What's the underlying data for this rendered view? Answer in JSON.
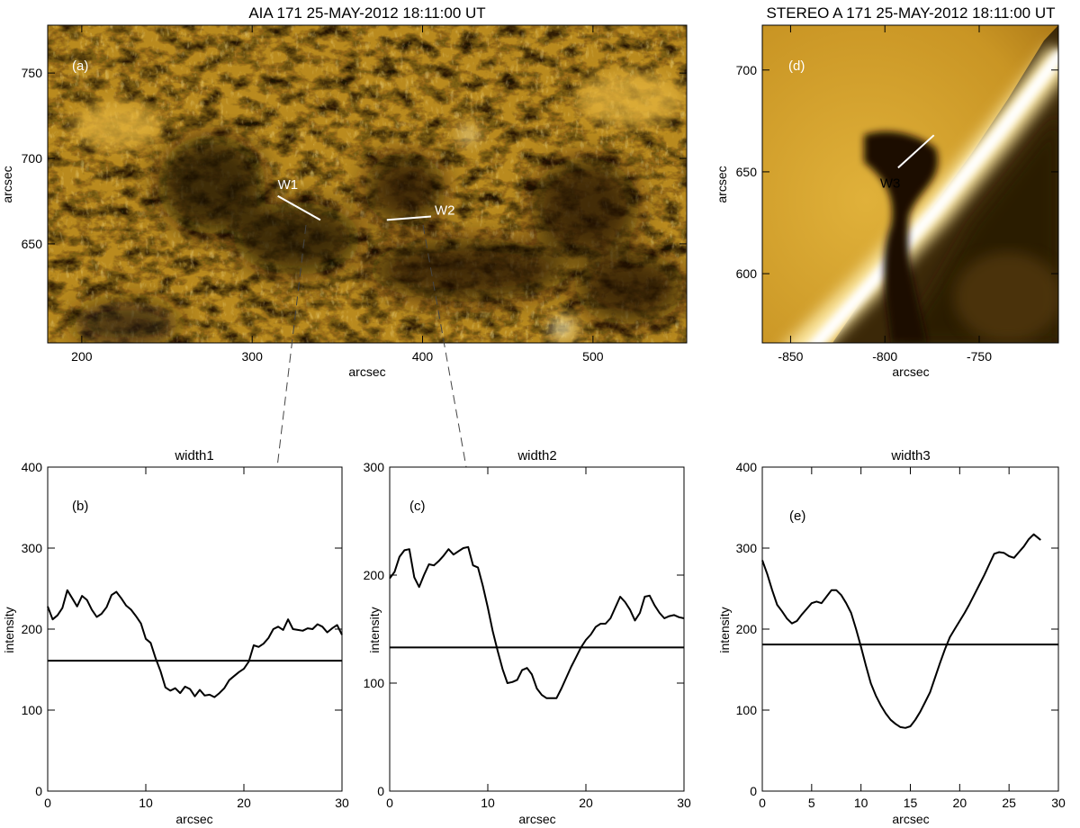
{
  "chart_data": [
    {
      "type": "image",
      "panel_letter": "(a)",
      "title": "AIA 171 25-MAY-2012 18:11:00 UT",
      "xlabel": "arcsec",
      "ylabel": "arcsec",
      "xlim": [
        180,
        555
      ],
      "ylim": [
        592,
        778
      ],
      "xticks": [
        200,
        300,
        400,
        500
      ],
      "yticks": [
        650,
        700,
        750
      ],
      "markers": [
        {
          "label": "W1",
          "x1": 315,
          "y1": 678,
          "x2": 340,
          "y2": 664
        },
        {
          "label": "W2",
          "x1": 379,
          "y1": 664,
          "x2": 405,
          "y2": 666
        }
      ],
      "colormap": "SDO AIA 171 (gold)"
    },
    {
      "type": "image",
      "panel_letter": "(d)",
      "title": "STEREO A 171 25-MAY-2012 18:11:00 UT",
      "xlabel": "arcsec",
      "ylabel": "arcsec",
      "xlim": [
        -865,
        -708
      ],
      "ylim": [
        566,
        722
      ],
      "xticks": [
        -850,
        -800,
        -750
      ],
      "yticks": [
        600,
        650,
        700
      ],
      "markers": [
        {
          "label": "W3",
          "x1": -793,
          "y1": 652,
          "x2": -774,
          "y2": 668
        }
      ],
      "colormap": "STEREO 171 (gold)"
    },
    {
      "type": "line",
      "panel_letter": "(b)",
      "title": "width1",
      "xlabel": "arcsec",
      "ylabel": "intensity",
      "xlim": [
        0,
        30
      ],
      "ylim": [
        0,
        400
      ],
      "xticks": [
        0,
        10,
        20,
        30
      ],
      "yticks": [
        0,
        100,
        200,
        300,
        400
      ],
      "threshold": 161,
      "x": [
        0,
        0.5,
        1,
        1.5,
        2,
        2.5,
        3,
        3.5,
        4,
        4.5,
        5,
        5.5,
        6,
        6.5,
        7,
        7.5,
        8,
        8.5,
        9,
        9.5,
        10,
        10.5,
        11,
        11.5,
        12,
        12.5,
        13,
        13.5,
        14,
        14.5,
        15,
        15.5,
        16,
        16.5,
        17,
        17.5,
        18,
        18.5,
        19,
        19.5,
        20,
        20.5,
        21,
        21.5,
        22,
        22.5,
        23,
        23.5,
        24,
        24.5,
        25,
        25.5,
        26,
        26.5,
        27,
        27.5,
        28,
        28.5,
        29,
        29.5,
        30
      ],
      "y": [
        228,
        212,
        217,
        226,
        248,
        238,
        228,
        241,
        236,
        224,
        215,
        219,
        227,
        242,
        246,
        238,
        229,
        224,
        216,
        207,
        188,
        183,
        164,
        148,
        128,
        124,
        127,
        121,
        129,
        126,
        117,
        125,
        118,
        119,
        116,
        121,
        127,
        137,
        142,
        147,
        151,
        160,
        180,
        178,
        182,
        189,
        200,
        203,
        199,
        212,
        200,
        199,
        198,
        201,
        200,
        206,
        203,
        196,
        201,
        205,
        193
      ]
    },
    {
      "type": "line",
      "panel_letter": "(c)",
      "title": "width2",
      "xlabel": "arcsec",
      "ylabel": "intensity",
      "xlim": [
        0,
        30
      ],
      "ylim": [
        0,
        300
      ],
      "xticks": [
        0,
        10,
        20,
        30
      ],
      "yticks": [
        0,
        100,
        200,
        300
      ],
      "threshold": 133,
      "x": [
        0,
        0.5,
        1,
        1.5,
        2,
        2.5,
        3,
        3.5,
        4,
        4.5,
        5,
        5.5,
        6,
        6.5,
        7,
        7.5,
        8,
        8.5,
        9,
        9.5,
        10,
        10.5,
        11,
        11.5,
        12,
        12.5,
        13,
        13.5,
        14,
        14.5,
        15,
        15.5,
        16,
        16.5,
        17,
        17.5,
        18,
        18.5,
        19,
        19.5,
        20,
        20.5,
        21,
        21.5,
        22,
        22.5,
        23,
        23.5,
        24,
        24.5,
        25,
        25.5,
        26,
        26.5,
        27,
        27.5,
        28,
        28.5,
        29,
        29.5,
        30
      ],
      "y": [
        197,
        203,
        217,
        223,
        224,
        198,
        189,
        200,
        210,
        209,
        213,
        218,
        224,
        219,
        222,
        225,
        226,
        209,
        207,
        190,
        170,
        148,
        130,
        113,
        100,
        101,
        103,
        112,
        114,
        108,
        95,
        89,
        86,
        86,
        86,
        95,
        105,
        115,
        124,
        133,
        140,
        145,
        152,
        155,
        155,
        160,
        170,
        180,
        175,
        168,
        158,
        165,
        180,
        181,
        172,
        165,
        160,
        162,
        163,
        161,
        160
      ]
    },
    {
      "type": "line",
      "panel_letter": "(e)",
      "title": "width3",
      "xlabel": "arcsec",
      "ylabel": "intensity",
      "xlim": [
        0,
        30
      ],
      "ylim": [
        0,
        400
      ],
      "xticks": [
        0,
        5,
        10,
        15,
        20,
        25,
        30
      ],
      "yticks": [
        0,
        100,
        200,
        300,
        400
      ],
      "threshold": 181,
      "x": [
        0,
        0.5,
        1,
        1.5,
        2,
        2.5,
        3,
        3.5,
        4,
        4.5,
        5,
        5.5,
        6,
        6.5,
        7,
        7.5,
        8,
        8.5,
        9,
        9.5,
        10,
        10.5,
        11,
        11.5,
        12,
        12.5,
        13,
        13.5,
        14,
        14.5,
        15,
        15.5,
        16,
        16.5,
        17,
        17.5,
        18,
        18.5,
        19,
        19.5,
        20,
        20.5,
        21,
        21.5,
        22,
        22.5,
        23,
        23.5,
        24,
        24.5,
        25,
        25.5,
        26,
        26.5,
        27,
        27.5,
        28,
        28.2
      ],
      "y": [
        285,
        268,
        248,
        230,
        222,
        213,
        207,
        210,
        218,
        225,
        232,
        234,
        232,
        240,
        248,
        248,
        242,
        232,
        220,
        200,
        178,
        155,
        133,
        118,
        106,
        96,
        88,
        83,
        79,
        78,
        80,
        88,
        98,
        110,
        122,
        140,
        158,
        175,
        190,
        200,
        210,
        220,
        231,
        243,
        255,
        267,
        280,
        293,
        295,
        294,
        290,
        288,
        295,
        302,
        311,
        317,
        312,
        310
      ]
    }
  ]
}
